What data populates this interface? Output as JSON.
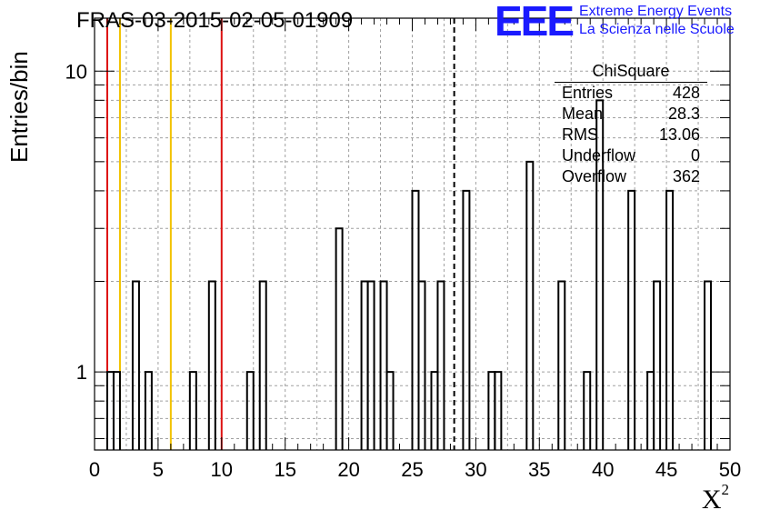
{
  "chart_data": {
    "type": "bar",
    "title": "FRAS-03-2015-02-05-01909",
    "xlabel": "X",
    "xlabel_superscript": "2",
    "ylabel": "Entries/bin",
    "xlim": [
      0,
      50
    ],
    "ylim_log": [
      0.55,
      15
    ],
    "log_y": true,
    "grid": true,
    "bin_width": 0.5,
    "x_ticks": [
      "0",
      "5",
      "10",
      "15",
      "20",
      "25",
      "30",
      "35",
      "40",
      "45",
      "50"
    ],
    "y_ticks": [
      "1",
      "10"
    ],
    "bins": [
      {
        "x": 1.0,
        "y": 1
      },
      {
        "x": 1.5,
        "y": 1
      },
      {
        "x": 3.0,
        "y": 2
      },
      {
        "x": 4.0,
        "y": 1
      },
      {
        "x": 7.5,
        "y": 1
      },
      {
        "x": 9.0,
        "y": 2
      },
      {
        "x": 12.0,
        "y": 1
      },
      {
        "x": 13.0,
        "y": 2
      },
      {
        "x": 19.0,
        "y": 3
      },
      {
        "x": 21.0,
        "y": 2
      },
      {
        "x": 21.5,
        "y": 2
      },
      {
        "x": 22.5,
        "y": 2
      },
      {
        "x": 23.0,
        "y": 1
      },
      {
        "x": 25.0,
        "y": 4
      },
      {
        "x": 25.5,
        "y": 2
      },
      {
        "x": 26.5,
        "y": 1
      },
      {
        "x": 27.0,
        "y": 2
      },
      {
        "x": 29.0,
        "y": 4
      },
      {
        "x": 31.0,
        "y": 1
      },
      {
        "x": 31.5,
        "y": 1
      },
      {
        "x": 34.0,
        "y": 5
      },
      {
        "x": 36.5,
        "y": 2
      },
      {
        "x": 38.5,
        "y": 1
      },
      {
        "x": 39.5,
        "y": 8
      },
      {
        "x": 42.0,
        "y": 4
      },
      {
        "x": 43.5,
        "y": 1
      },
      {
        "x": 44.0,
        "y": 2
      },
      {
        "x": 45.0,
        "y": 4
      },
      {
        "x": 48.0,
        "y": 2
      }
    ],
    "vertical_lines": [
      {
        "x": 1.0,
        "color": "#dd1111",
        "style": "solid"
      },
      {
        "x": 2.0,
        "color": "#f2c200",
        "style": "solid"
      },
      {
        "x": 6.0,
        "color": "#f2c200",
        "style": "solid"
      },
      {
        "x": 10.0,
        "color": "#dd1111",
        "style": "solid"
      },
      {
        "x": 28.3,
        "color": "#000000",
        "style": "dashed"
      }
    ]
  },
  "stats_box": {
    "title": "ChiSquare",
    "rows": [
      {
        "label": "Entries",
        "value": "428"
      },
      {
        "label": "Mean",
        "value": "28.3"
      },
      {
        "label": "RMS",
        "value": "13.06"
      },
      {
        "label": "Underflow",
        "value": "0"
      },
      {
        "label": "Overflow",
        "value": "362"
      }
    ]
  },
  "logo": {
    "mark": "EEE",
    "line1": "Extreme Energy Events",
    "line2": "La Scienza nelle Scuole",
    "color": "#1a1aff"
  }
}
